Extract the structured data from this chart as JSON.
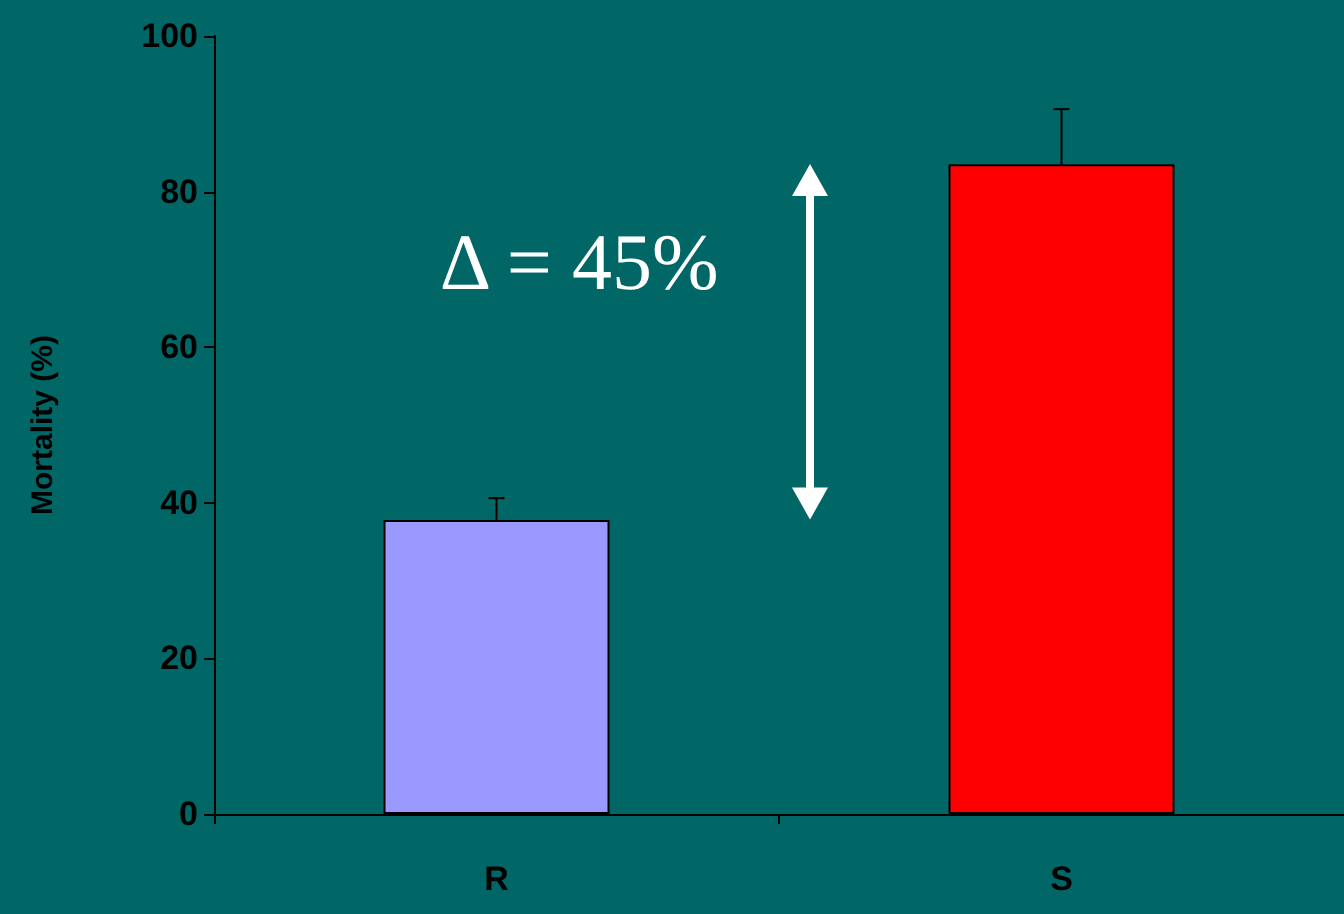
{
  "chart_data": {
    "type": "bar",
    "ylabel": "Mortality (%)",
    "categories": [
      "R",
      "S"
    ],
    "values": [
      37.8,
      83.5
    ],
    "colors": [
      "#9999ff",
      "#ff0000"
    ],
    "errors": [
      [
        37.8,
        40.6
      ],
      [
        83.5,
        90.6
      ]
    ],
    "ylim": [
      0,
      100
    ],
    "yticks": [
      0,
      20,
      40,
      60,
      80,
      100
    ],
    "grid": false,
    "annotations": [
      "Δ = 45%"
    ]
  }
}
